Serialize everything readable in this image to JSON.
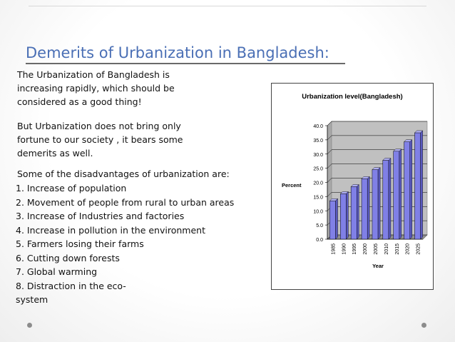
{
  "slide": {
    "title": "Demerits of Urbanization in Bangladesh:",
    "intro": "The Urbanization of Bangladesh is increasing rapidly, which should be considered as a good thing!",
    "contrast": "But Urbanization does not bring only fortune to our society , it bears some demerits as well.",
    "list_heading": "Some of the disadvantages of urbanization are:",
    "items": [
      "1. Increase of population",
      "2. Movement of people from rural to urban areas",
      "3. Increase of Industries and factories",
      "4. Increase in pollution in the environment",
      "5. Farmers losing their farms",
      "6. Cutting down forests",
      "7. Global warming",
      "8. Distraction in the eco-system"
    ]
  },
  "colors": {
    "title": "#4a6fb5",
    "bar": "#8080e6",
    "plot_bg": "#c0c0c0"
  },
  "chart_data": {
    "type": "bar",
    "title": "Urbanization level(Bangladesh)",
    "xlabel": "Year",
    "ylabel": "Percent",
    "categories": [
      "1985",
      "1990",
      "1995",
      "2000",
      "2005",
      "2010",
      "2015",
      "2020",
      "2025"
    ],
    "values": [
      13.5,
      16.0,
      18.5,
      21.3,
      24.5,
      27.8,
      31.0,
      34.3,
      37.5
    ],
    "ylim": [
      0,
      40
    ],
    "yticks": [
      "0.0",
      "5.0",
      "10.0",
      "15.0",
      "20.0",
      "25.0",
      "30.0",
      "35.0",
      "40.0"
    ],
    "grid": true,
    "legend": "none"
  }
}
